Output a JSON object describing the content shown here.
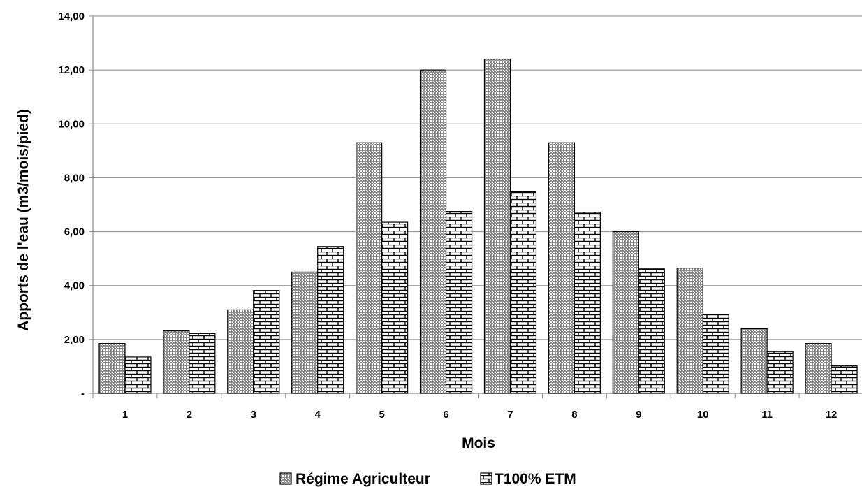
{
  "chart_data": {
    "type": "bar",
    "categories": [
      "1",
      "2",
      "3",
      "4",
      "5",
      "6",
      "7",
      "8",
      "9",
      "10",
      "11",
      "12"
    ],
    "series": [
      {
        "name": "Régime Agriculteur",
        "values": [
          1.85,
          2.32,
          3.1,
          4.5,
          9.3,
          12.0,
          12.4,
          9.3,
          6.0,
          4.65,
          2.4,
          1.85
        ]
      },
      {
        "name": "T100% ETM",
        "values": [
          1.35,
          2.22,
          3.82,
          5.45,
          6.35,
          6.75,
          7.48,
          6.72,
          4.62,
          2.92,
          1.55,
          1.02
        ]
      }
    ],
    "title": "",
    "xlabel": "Mois",
    "ylabel": "Apports de l'eau (m3/mois/pied)",
    "ylim": [
      0,
      14
    ],
    "yticks": [
      "-",
      "2,00",
      "4,00",
      "6,00",
      "8,00",
      "10,00",
      "12,00",
      "14,00"
    ],
    "grid": true,
    "legend_position": "bottom"
  }
}
